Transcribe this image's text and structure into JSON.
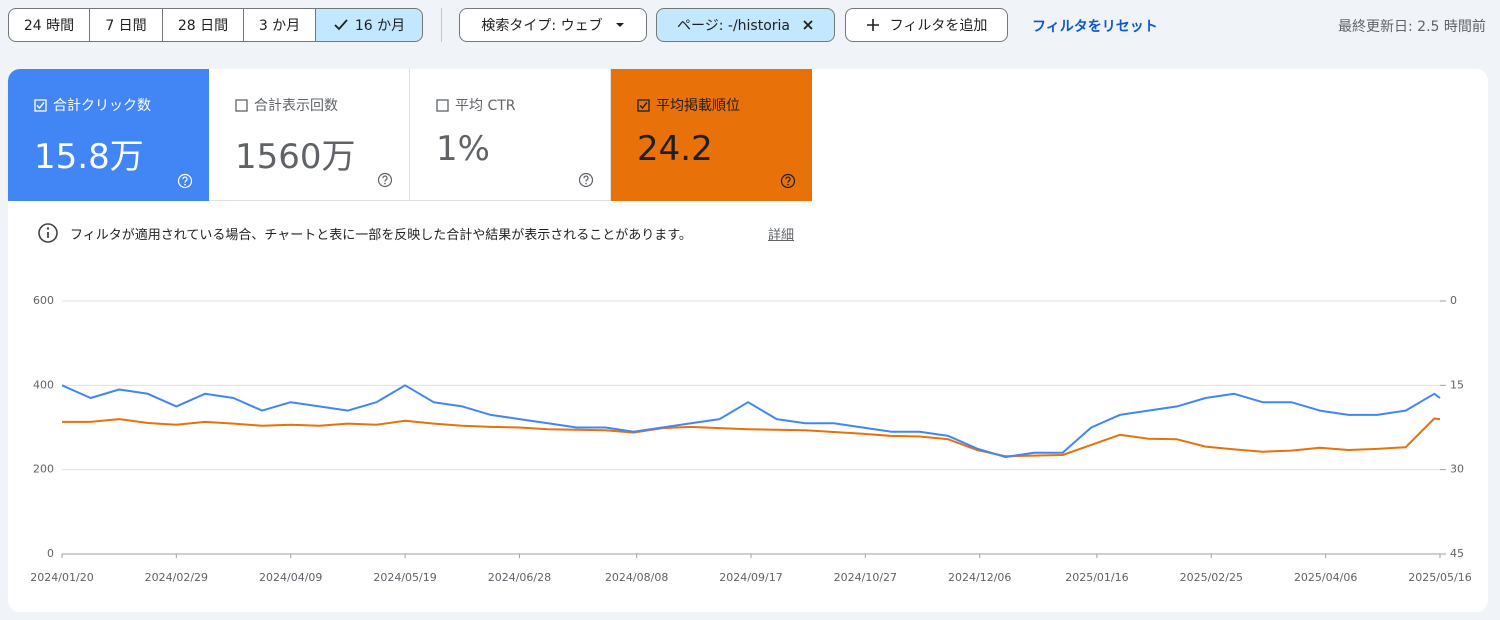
{
  "toolbar": {
    "ranges": [
      "24 時間",
      "7 日間",
      "28 日間",
      "3 か月",
      "16 か月"
    ],
    "selected_range": 4,
    "filters": [
      {
        "label": "検索タイプ: ウェブ",
        "active": false
      },
      {
        "label": "ページ: -/historia",
        "active": true
      }
    ],
    "add_filter": "フィルタを追加",
    "reset": "フィルタをリセット",
    "last_updated": "最終更新日: 2.5 時間前"
  },
  "metrics": [
    {
      "label": "合計クリック数",
      "value": "15.8万",
      "checked": true,
      "color": "#4285f4"
    },
    {
      "label": "合計表示回数",
      "value": "1560万",
      "checked": false
    },
    {
      "label": "平均 CTR",
      "value": "1%",
      "checked": false
    },
    {
      "label": "平均掲載順位",
      "value": "24.2",
      "checked": true,
      "color": "#e8710a"
    }
  ],
  "notice": "フィルタが適用されている場合、チャートと表に一部を反映した合計や結果が表示されることがあります。",
  "notice_link": "詳細",
  "chart_data": {
    "type": "line",
    "x": [
      "2024/01/20",
      "2024/01/30",
      "2024/02/09",
      "2024/02/19",
      "2024/02/29",
      "2024/03/10",
      "2024/03/20",
      "2024/03/30",
      "2024/04/09",
      "2024/04/19",
      "2024/04/29",
      "2024/05/09",
      "2024/05/19",
      "2024/05/29",
      "2024/06/08",
      "2024/06/18",
      "2024/06/28",
      "2024/07/08",
      "2024/07/18",
      "2024/07/28",
      "2024/08/07",
      "2024/08/17",
      "2024/08/27",
      "2024/09/06",
      "2024/09/16",
      "2024/09/26",
      "2024/10/06",
      "2024/10/16",
      "2024/10/26",
      "2024/11/05",
      "2024/11/15",
      "2024/11/25",
      "2024/12/05",
      "2024/12/15",
      "2024/12/25",
      "2025/01/04",
      "2025/01/14",
      "2025/01/24",
      "2025/02/03",
      "2025/02/13",
      "2025/02/23",
      "2025/03/05",
      "2025/03/15",
      "2025/03/25",
      "2025/04/04",
      "2025/04/14",
      "2025/04/24",
      "2025/05/04",
      "2025/05/14",
      "2025/05/16"
    ],
    "series": [
      {
        "color": "#4285f4",
        "axis": "y",
        "values": [
          400,
          370,
          390,
          380,
          350,
          380,
          370,
          340,
          360,
          350,
          340,
          360,
          400,
          360,
          350,
          330,
          320,
          310,
          300,
          300,
          290,
          300,
          310,
          320,
          360,
          320,
          310,
          310,
          300,
          290,
          290,
          280,
          250,
          230,
          240,
          240,
          300,
          330,
          340,
          350,
          370,
          380,
          360,
          360,
          340,
          330,
          330,
          340,
          380,
          370
        ]
      },
      {
        "color": "#e8710a",
        "axis": "y2",
        "values": [
          21.5,
          21.5,
          21.0,
          21.7,
          22.0,
          21.5,
          21.8,
          22.2,
          22.0,
          22.2,
          21.8,
          22.0,
          21.3,
          21.8,
          22.2,
          22.4,
          22.5,
          22.8,
          22.9,
          23.0,
          23.4,
          22.6,
          22.4,
          22.6,
          22.8,
          22.9,
          23.0,
          23.3,
          23.6,
          24.0,
          24.1,
          24.6,
          26.5,
          27.6,
          27.5,
          27.4,
          25.6,
          23.8,
          24.5,
          24.6,
          25.9,
          26.4,
          26.8,
          26.6,
          26.1,
          26.5,
          26.3,
          26.0,
          20.9,
          21.0
        ]
      }
    ],
    "xlim": [
      "2024/01/20",
      "2025/05/16"
    ],
    "xticks": [
      "2024/01/20",
      "2024/02/29",
      "2024/04/09",
      "2024/05/19",
      "2024/06/28",
      "2024/08/08",
      "2024/09/17",
      "2024/10/27",
      "2024/12/06",
      "2025/01/16",
      "2025/02/25",
      "2025/04/06",
      "2025/05/16"
    ],
    "ylim": [
      0,
      600
    ],
    "yticks": [
      0,
      200,
      400,
      600
    ],
    "y2lim": [
      45,
      0
    ],
    "y2ticks": [
      0,
      15,
      30,
      45
    ],
    "grid": true
  }
}
